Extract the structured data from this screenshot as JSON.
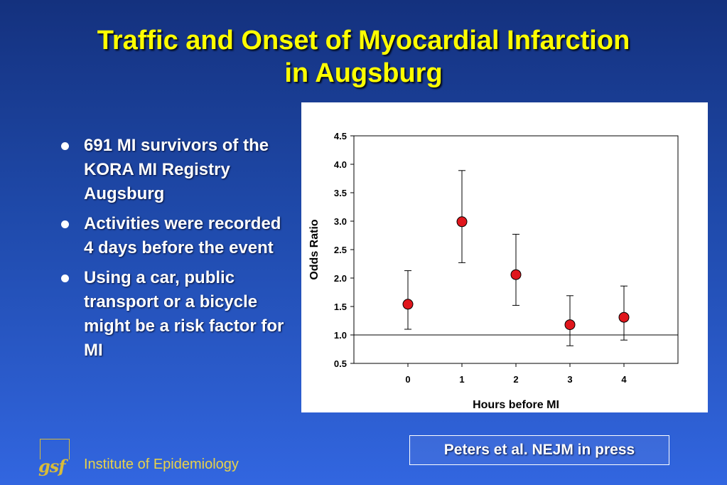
{
  "slide": {
    "title_line1": "Traffic and Onset of Myocardial Infarction",
    "title_line2": "in Augsburg",
    "bullets": [
      "691 MI survivors of the KORA MI Registry Augsburg",
      "Activities were recorded 4 days before the event",
      "Using a car, public transport or a bicycle might be a risk factor for MI"
    ],
    "reference": "Peters et al. NEJM in press",
    "footer": {
      "logo_text": "gsf",
      "institute": "Institute of Epidemiology"
    }
  },
  "colors": {
    "title": "#ffff00",
    "marker": "#e0161c",
    "institute": "#e8d24a"
  },
  "chart_data": {
    "type": "scatter",
    "title": "",
    "xlabel": "Hours before MI",
    "ylabel": "Odds Ratio",
    "x": [
      0,
      1,
      2,
      3,
      4
    ],
    "y": [
      1.54,
      2.99,
      2.06,
      1.18,
      1.31
    ],
    "error_low": [
      1.1,
      2.27,
      1.52,
      0.81,
      0.91
    ],
    "error_high": [
      2.13,
      3.89,
      2.77,
      1.69,
      1.86
    ],
    "xlim": [
      -1,
      5
    ],
    "ylim": [
      0.5,
      4.5
    ],
    "yticks": [
      "0.5",
      "1.0",
      "1.5",
      "2.0",
      "2.5",
      "3.0",
      "3.5",
      "4.0",
      "4.5"
    ],
    "xticks": [
      "0",
      "1",
      "2",
      "3",
      "4"
    ],
    "reference_line": 1.0,
    "grid": false,
    "legend": "none"
  }
}
